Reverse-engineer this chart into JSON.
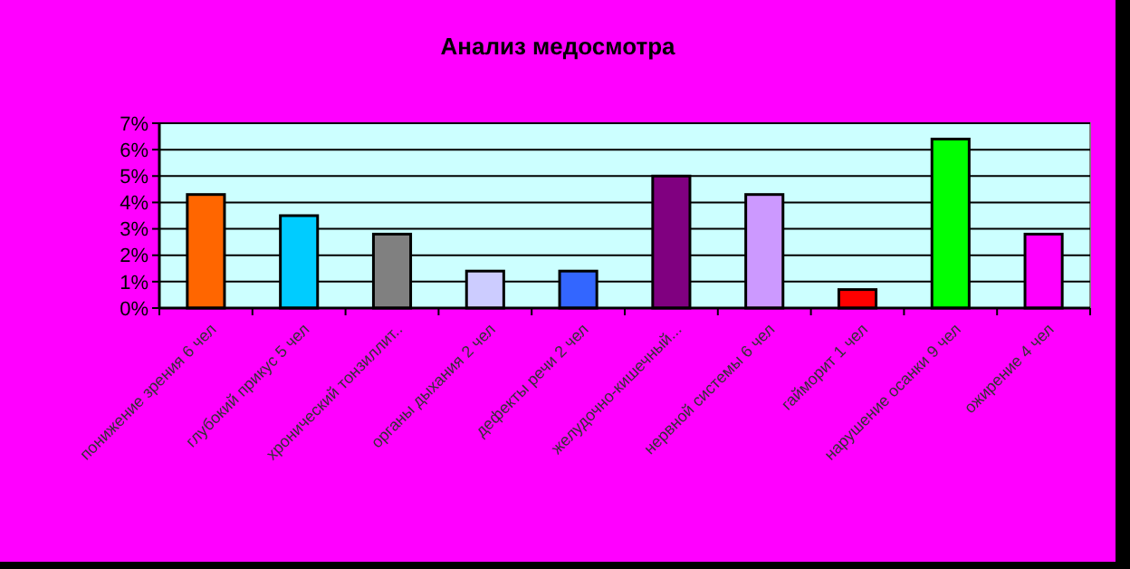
{
  "chart_data": {
    "type": "bar",
    "title": "Анализ медосмотра",
    "categories": [
      "понижение зрения 6 чел",
      "глубокий прикус 5 чел",
      "хронический тонзиллит..",
      "органы дыхания 2 чел",
      "дефекты речи 2 чел",
      "желудочно-кишечный...",
      "нервной системы 6 чел",
      "гайморит 1 чел",
      "нарушение осанки 9 чел",
      "ожирение 4 чел"
    ],
    "values": [
      4.3,
      3.5,
      2.8,
      1.4,
      1.4,
      5.0,
      4.3,
      0.7,
      6.4,
      2.8
    ],
    "colors": [
      "#ff6600",
      "#00ccff",
      "#808080",
      "#ccccff",
      "#3366ff",
      "#800080",
      "#cc99ff",
      "#ff0000",
      "#00ff00",
      "#ff00ff"
    ],
    "ylim": [
      0,
      7
    ],
    "yticks": [
      {
        "value": 0,
        "label": "0%"
      },
      {
        "value": 1,
        "label": "1%"
      },
      {
        "value": 2,
        "label": "2%"
      },
      {
        "value": 3,
        "label": "3%"
      },
      {
        "value": 4,
        "label": "4%"
      },
      {
        "value": 5,
        "label": "5%"
      },
      {
        "value": 6,
        "label": "6%"
      },
      {
        "value": 7,
        "label": "7%"
      }
    ],
    "grid": "y"
  }
}
